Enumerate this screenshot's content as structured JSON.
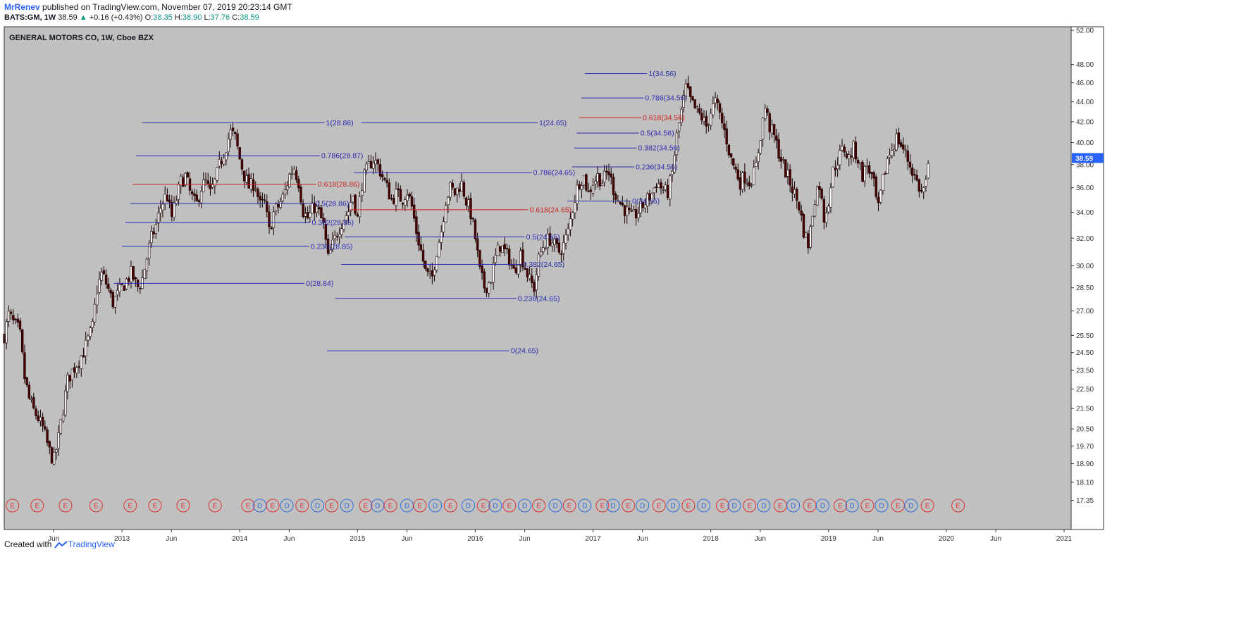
{
  "header": {
    "user": "MrRenev",
    "published": "published on TradingView.com, November 07, 2019 20:23:14 GMT",
    "symbol": "BATS:GM, 1W",
    "last": "38.59",
    "change": "+0.16 (+0.43%)",
    "o_label": "O:",
    "o": "38.35",
    "h_label": "H:",
    "h": "38.90",
    "l_label": "L:",
    "l": "37.76",
    "c_label": "C:",
    "c": "38.59"
  },
  "footer": {
    "created_with": "Created with",
    "brand": "TradingView"
  },
  "colors": {
    "background": "#c0c0c0",
    "up_candle": "#ffffff",
    "down_candle": "#4a0000",
    "fib_blue": "#2b2bb0",
    "fib_red": "#cc2222",
    "earnings": "#e03030",
    "dividend": "#2a6fe0",
    "price_tag": "#2962ff"
  },
  "chart_data": {
    "type": "candlestick",
    "title": "GENERAL MOTORS CO, 1W, Cboe BZX",
    "y_scale": "log",
    "ylim": [
      17.0,
      52.0
    ],
    "y_ticks": [
      "52.00",
      "48.00",
      "46.00",
      "44.00",
      "42.00",
      "40.00",
      "38.00",
      "36.00",
      "34.00",
      "32.00",
      "30.00",
      "28.50",
      "27.00",
      "25.50",
      "24.50",
      "23.50",
      "22.50",
      "21.50",
      "20.50",
      "19.70",
      "18.90",
      "18.10",
      "17.35"
    ],
    "x_ticks": [
      {
        "label": "Jun",
        "t": 2012.42
      },
      {
        "label": "2013",
        "t": 2013.0
      },
      {
        "label": "Jun",
        "t": 2013.42
      },
      {
        "label": "2014",
        "t": 2014.0
      },
      {
        "label": "Jun",
        "t": 2014.42
      },
      {
        "label": "2015",
        "t": 2015.0
      },
      {
        "label": "Jun",
        "t": 2015.42
      },
      {
        "label": "2016",
        "t": 2016.0
      },
      {
        "label": "Jun",
        "t": 2016.42
      },
      {
        "label": "2017",
        "t": 2017.0
      },
      {
        "label": "Jun",
        "t": 2017.42
      },
      {
        "label": "2018",
        "t": 2018.0
      },
      {
        "label": "Jun",
        "t": 2018.42
      },
      {
        "label": "2019",
        "t": 2019.0
      },
      {
        "label": "Jun",
        "t": 2019.42
      },
      {
        "label": "2020",
        "t": 2020.0
      },
      {
        "label": "Jun",
        "t": 2020.42
      },
      {
        "label": "2021",
        "t": 2021.0
      }
    ],
    "x_range": [
      2012.0,
      2021.06
    ],
    "last_price": "38.59",
    "price_path": [
      [
        2012.0,
        25.5
      ],
      [
        2012.04,
        26.8
      ],
      [
        2012.08,
        26.2
      ],
      [
        2012.13,
        25.8
      ],
      [
        2012.17,
        23.2
      ],
      [
        2012.21,
        22.0
      ],
      [
        2012.25,
        21.4
      ],
      [
        2012.29,
        21.0
      ],
      [
        2012.33,
        20.5
      ],
      [
        2012.38,
        19.5
      ],
      [
        2012.42,
        19.0
      ],
      [
        2012.46,
        20.0
      ],
      [
        2012.5,
        21.5
      ],
      [
        2012.54,
        23.0
      ],
      [
        2012.58,
        23.5
      ],
      [
        2012.63,
        24.0
      ],
      [
        2012.67,
        24.5
      ],
      [
        2012.71,
        25.2
      ],
      [
        2012.75,
        26.0
      ],
      [
        2012.79,
        28.5
      ],
      [
        2012.83,
        29.5
      ],
      [
        2012.88,
        28.5
      ],
      [
        2012.92,
        27.5
      ],
      [
        2012.96,
        28.0
      ],
      [
        2013.0,
        28.5
      ],
      [
        2013.04,
        29.0
      ],
      [
        2013.08,
        29.5
      ],
      [
        2013.13,
        28.5
      ],
      [
        2013.17,
        29.0
      ],
      [
        2013.21,
        30.5
      ],
      [
        2013.25,
        32.0
      ],
      [
        2013.29,
        33.0
      ],
      [
        2013.33,
        34.5
      ],
      [
        2013.38,
        35.5
      ],
      [
        2013.42,
        33.5
      ],
      [
        2013.46,
        35.0
      ],
      [
        2013.5,
        36.5
      ],
      [
        2013.54,
        37.0
      ],
      [
        2013.58,
        35.5
      ],
      [
        2013.63,
        34.5
      ],
      [
        2013.67,
        36.0
      ],
      [
        2013.71,
        36.5
      ],
      [
        2013.75,
        35.5
      ],
      [
        2013.79,
        36.5
      ],
      [
        2013.83,
        38.0
      ],
      [
        2013.88,
        39.5
      ],
      [
        2013.92,
        41.0
      ],
      [
        2013.96,
        40.5
      ],
      [
        2014.0,
        38.5
      ],
      [
        2014.04,
        37.0
      ],
      [
        2014.08,
        36.0
      ],
      [
        2014.13,
        36.5
      ],
      [
        2014.17,
        34.5
      ],
      [
        2014.21,
        34.8
      ],
      [
        2014.25,
        32.5
      ],
      [
        2014.29,
        34.0
      ],
      [
        2014.33,
        34.5
      ],
      [
        2014.38,
        35.5
      ],
      [
        2014.42,
        37.0
      ],
      [
        2014.46,
        37.8
      ],
      [
        2014.5,
        36.5
      ],
      [
        2014.54,
        34.0
      ],
      [
        2014.58,
        33.5
      ],
      [
        2014.63,
        34.5
      ],
      [
        2014.67,
        34.0
      ],
      [
        2014.71,
        33.0
      ],
      [
        2014.75,
        30.5
      ],
      [
        2014.79,
        31.5
      ],
      [
        2014.83,
        32.5
      ],
      [
        2014.88,
        33.5
      ],
      [
        2014.92,
        34.0
      ],
      [
        2014.96,
        35.5
      ],
      [
        2015.0,
        33.5
      ],
      [
        2015.04,
        36.5
      ],
      [
        2015.08,
        37.5
      ],
      [
        2015.13,
        38.5
      ],
      [
        2015.17,
        38.0
      ],
      [
        2015.21,
        37.0
      ],
      [
        2015.25,
        36.0
      ],
      [
        2015.29,
        35.0
      ],
      [
        2015.33,
        35.5
      ],
      [
        2015.38,
        35.0
      ],
      [
        2015.42,
        35.8
      ],
      [
        2015.46,
        34.5
      ],
      [
        2015.5,
        32.5
      ],
      [
        2015.54,
        31.0
      ],
      [
        2015.58,
        29.5
      ],
      [
        2015.63,
        29.0
      ],
      [
        2015.67,
        31.0
      ],
      [
        2015.71,
        32.5
      ],
      [
        2015.75,
        35.0
      ],
      [
        2015.79,
        36.0
      ],
      [
        2015.83,
        35.5
      ],
      [
        2015.88,
        36.5
      ],
      [
        2015.92,
        35.0
      ],
      [
        2015.96,
        34.0
      ],
      [
        2016.0,
        32.0
      ],
      [
        2016.04,
        29.5
      ],
      [
        2016.08,
        28.5
      ],
      [
        2016.13,
        29.0
      ],
      [
        2016.17,
        30.5
      ],
      [
        2016.21,
        31.5
      ],
      [
        2016.25,
        31.0
      ],
      [
        2016.29,
        30.5
      ],
      [
        2016.33,
        29.5
      ],
      [
        2016.38,
        31.0
      ],
      [
        2016.42,
        30.0
      ],
      [
        2016.46,
        29.0
      ],
      [
        2016.5,
        28.5
      ],
      [
        2016.54,
        30.5
      ],
      [
        2016.58,
        31.5
      ],
      [
        2016.63,
        32.0
      ],
      [
        2016.67,
        31.5
      ],
      [
        2016.71,
        31.0
      ],
      [
        2016.75,
        31.5
      ],
      [
        2016.79,
        32.5
      ],
      [
        2016.83,
        34.5
      ],
      [
        2016.88,
        36.5
      ],
      [
        2016.92,
        37.0
      ],
      [
        2016.96,
        35.5
      ],
      [
        2017.0,
        36.5
      ],
      [
        2017.04,
        37.0
      ],
      [
        2017.08,
        36.5
      ],
      [
        2017.13,
        37.5
      ],
      [
        2017.17,
        36.0
      ],
      [
        2017.21,
        35.0
      ],
      [
        2017.25,
        34.5
      ],
      [
        2017.29,
        34.0
      ],
      [
        2017.33,
        33.5
      ],
      [
        2017.38,
        34.0
      ],
      [
        2017.42,
        34.5
      ],
      [
        2017.46,
        35.0
      ],
      [
        2017.5,
        35.5
      ],
      [
        2017.54,
        36.5
      ],
      [
        2017.58,
        36.0
      ],
      [
        2017.63,
        35.5
      ],
      [
        2017.67,
        37.0
      ],
      [
        2017.71,
        40.5
      ],
      [
        2017.75,
        43.0
      ],
      [
        2017.79,
        45.5
      ],
      [
        2017.83,
        44.0
      ],
      [
        2017.88,
        43.0
      ],
      [
        2017.92,
        42.5
      ],
      [
        2017.96,
        41.5
      ],
      [
        2018.0,
        43.0
      ],
      [
        2018.04,
        44.0
      ],
      [
        2018.08,
        42.5
      ],
      [
        2018.13,
        40.5
      ],
      [
        2018.17,
        38.5
      ],
      [
        2018.21,
        37.5
      ],
      [
        2018.25,
        36.5
      ],
      [
        2018.29,
        37.0
      ],
      [
        2018.33,
        36.5
      ],
      [
        2018.38,
        37.5
      ],
      [
        2018.42,
        40.5
      ],
      [
        2018.46,
        43.5
      ],
      [
        2018.5,
        41.5
      ],
      [
        2018.54,
        40.5
      ],
      [
        2018.58,
        39.0
      ],
      [
        2018.63,
        37.5
      ],
      [
        2018.67,
        36.5
      ],
      [
        2018.71,
        35.5
      ],
      [
        2018.75,
        34.5
      ],
      [
        2018.79,
        32.5
      ],
      [
        2018.83,
        31.5
      ],
      [
        2018.88,
        35.0
      ],
      [
        2018.92,
        36.5
      ],
      [
        2018.96,
        33.5
      ],
      [
        2019.0,
        35.0
      ],
      [
        2019.04,
        37.5
      ],
      [
        2019.08,
        38.5
      ],
      [
        2019.13,
        39.5
      ],
      [
        2019.17,
        38.5
      ],
      [
        2019.21,
        39.5
      ],
      [
        2019.25,
        38.5
      ],
      [
        2019.29,
        37.0
      ],
      [
        2019.33,
        38.0
      ],
      [
        2019.38,
        36.5
      ],
      [
        2019.42,
        34.0
      ],
      [
        2019.46,
        36.5
      ],
      [
        2019.5,
        38.5
      ],
      [
        2019.54,
        39.5
      ],
      [
        2019.58,
        40.5
      ],
      [
        2019.63,
        39.5
      ],
      [
        2019.67,
        38.5
      ],
      [
        2019.71,
        37.5
      ],
      [
        2019.75,
        36.5
      ],
      [
        2019.79,
        35.5
      ],
      [
        2019.83,
        36.5
      ],
      [
        2019.86,
        38.59
      ]
    ],
    "fib_levels": [
      {
        "label": "1(28.88)",
        "price": 41.9,
        "x0": 2013.17,
        "x1": 2014.72,
        "red": false
      },
      {
        "label": "0.786(28.87)",
        "price": 38.8,
        "x0": 2013.12,
        "x1": 2014.68,
        "red": false
      },
      {
        "label": "0.618(28.86)",
        "price": 36.3,
        "x0": 2013.09,
        "x1": 2014.65,
        "red": true
      },
      {
        "label": "0.5(28.86)",
        "price": 34.7,
        "x0": 2013.07,
        "x1": 2014.63,
        "red": false
      },
      {
        "label": "0.382(28.85)",
        "price": 33.2,
        "x0": 2013.03,
        "x1": 2014.6,
        "red": false
      },
      {
        "label": "0.236(28.85)",
        "price": 31.4,
        "x0": 2013.0,
        "x1": 2014.59,
        "red": false
      },
      {
        "label": "0(28.84)",
        "price": 28.8,
        "x0": 2012.93,
        "x1": 2014.55,
        "red": false
      },
      {
        "label": "1(24.65)",
        "price": 41.9,
        "x0": 2015.03,
        "x1": 2016.53,
        "red": false
      },
      {
        "label": "0.786(24.65)",
        "price": 37.3,
        "x0": 2014.97,
        "x1": 2016.48,
        "red": false
      },
      {
        "label": "0.618(24.65)",
        "price": 34.2,
        "x0": 2014.93,
        "x1": 2016.45,
        "red": true
      },
      {
        "label": "0.5(24.65)",
        "price": 32.1,
        "x0": 2014.89,
        "x1": 2016.42,
        "red": false
      },
      {
        "label": "0.382(24.65)",
        "price": 30.1,
        "x0": 2014.86,
        "x1": 2016.39,
        "red": false
      },
      {
        "label": "0.236(24.65)",
        "price": 27.8,
        "x0": 2014.81,
        "x1": 2016.35,
        "red": false
      },
      {
        "label": "0(24.65)",
        "price": 24.6,
        "x0": 2014.74,
        "x1": 2016.29,
        "red": false
      },
      {
        "label": "1(34.56)",
        "price": 47.0,
        "x0": 2016.93,
        "x1": 2017.46,
        "red": false
      },
      {
        "label": "0.786(34.56)",
        "price": 44.4,
        "x0": 2016.9,
        "x1": 2017.43,
        "red": false
      },
      {
        "label": "0.618(34.56)",
        "price": 42.4,
        "x0": 2016.88,
        "x1": 2017.41,
        "red": true
      },
      {
        "label": "0.5(34.56)",
        "price": 40.9,
        "x0": 2016.86,
        "x1": 2017.39,
        "red": false
      },
      {
        "label": "0.382(34.56)",
        "price": 39.5,
        "x0": 2016.84,
        "x1": 2017.37,
        "red": false
      },
      {
        "label": "0.236(34.56)",
        "price": 37.8,
        "x0": 2016.82,
        "x1": 2017.35,
        "red": false
      },
      {
        "label": "0(34.56)",
        "price": 34.9,
        "x0": 2016.78,
        "x1": 2017.32,
        "red": false
      }
    ],
    "events": [
      {
        "t": "E",
        "x": 2012.07
      },
      {
        "t": "E",
        "x": 2012.28
      },
      {
        "t": "E",
        "x": 2012.52
      },
      {
        "t": "E",
        "x": 2012.78
      },
      {
        "t": "E",
        "x": 2013.07
      },
      {
        "t": "E",
        "x": 2013.28
      },
      {
        "t": "E",
        "x": 2013.52
      },
      {
        "t": "E",
        "x": 2013.79
      },
      {
        "t": "E",
        "x": 2014.07
      },
      {
        "t": "D",
        "x": 2014.17
      },
      {
        "t": "E",
        "x": 2014.28
      },
      {
        "t": "D",
        "x": 2014.4
      },
      {
        "t": "E",
        "x": 2014.53
      },
      {
        "t": "D",
        "x": 2014.66
      },
      {
        "t": "E",
        "x": 2014.78
      },
      {
        "t": "D",
        "x": 2014.91
      },
      {
        "t": "E",
        "x": 2015.07
      },
      {
        "t": "D",
        "x": 2015.17
      },
      {
        "t": "E",
        "x": 2015.28
      },
      {
        "t": "D",
        "x": 2015.42
      },
      {
        "t": "E",
        "x": 2015.53
      },
      {
        "t": "D",
        "x": 2015.66
      },
      {
        "t": "E",
        "x": 2015.79
      },
      {
        "t": "D",
        "x": 2015.94
      },
      {
        "t": "E",
        "x": 2016.07
      },
      {
        "t": "D",
        "x": 2016.17
      },
      {
        "t": "E",
        "x": 2016.29
      },
      {
        "t": "D",
        "x": 2016.42
      },
      {
        "t": "E",
        "x": 2016.54
      },
      {
        "t": "D",
        "x": 2016.68
      },
      {
        "t": "E",
        "x": 2016.8
      },
      {
        "t": "D",
        "x": 2016.93
      },
      {
        "t": "E",
        "x": 2017.08
      },
      {
        "t": "D",
        "x": 2017.17
      },
      {
        "t": "E",
        "x": 2017.3
      },
      {
        "t": "D",
        "x": 2017.42
      },
      {
        "t": "E",
        "x": 2017.56
      },
      {
        "t": "D",
        "x": 2017.68
      },
      {
        "t": "E",
        "x": 2017.81
      },
      {
        "t": "D",
        "x": 2017.94
      },
      {
        "t": "E",
        "x": 2018.1
      },
      {
        "t": "D",
        "x": 2018.2
      },
      {
        "t": "E",
        "x": 2018.33
      },
      {
        "t": "D",
        "x": 2018.45
      },
      {
        "t": "E",
        "x": 2018.59
      },
      {
        "t": "D",
        "x": 2018.7
      },
      {
        "t": "E",
        "x": 2018.84
      },
      {
        "t": "D",
        "x": 2018.95
      },
      {
        "t": "E",
        "x": 2019.1
      },
      {
        "t": "D",
        "x": 2019.2
      },
      {
        "t": "E",
        "x": 2019.33
      },
      {
        "t": "D",
        "x": 2019.45
      },
      {
        "t": "E",
        "x": 2019.59
      },
      {
        "t": "D",
        "x": 2019.7
      },
      {
        "t": "E",
        "x": 2019.84
      },
      {
        "t": "E",
        "x": 2020.1
      }
    ]
  }
}
